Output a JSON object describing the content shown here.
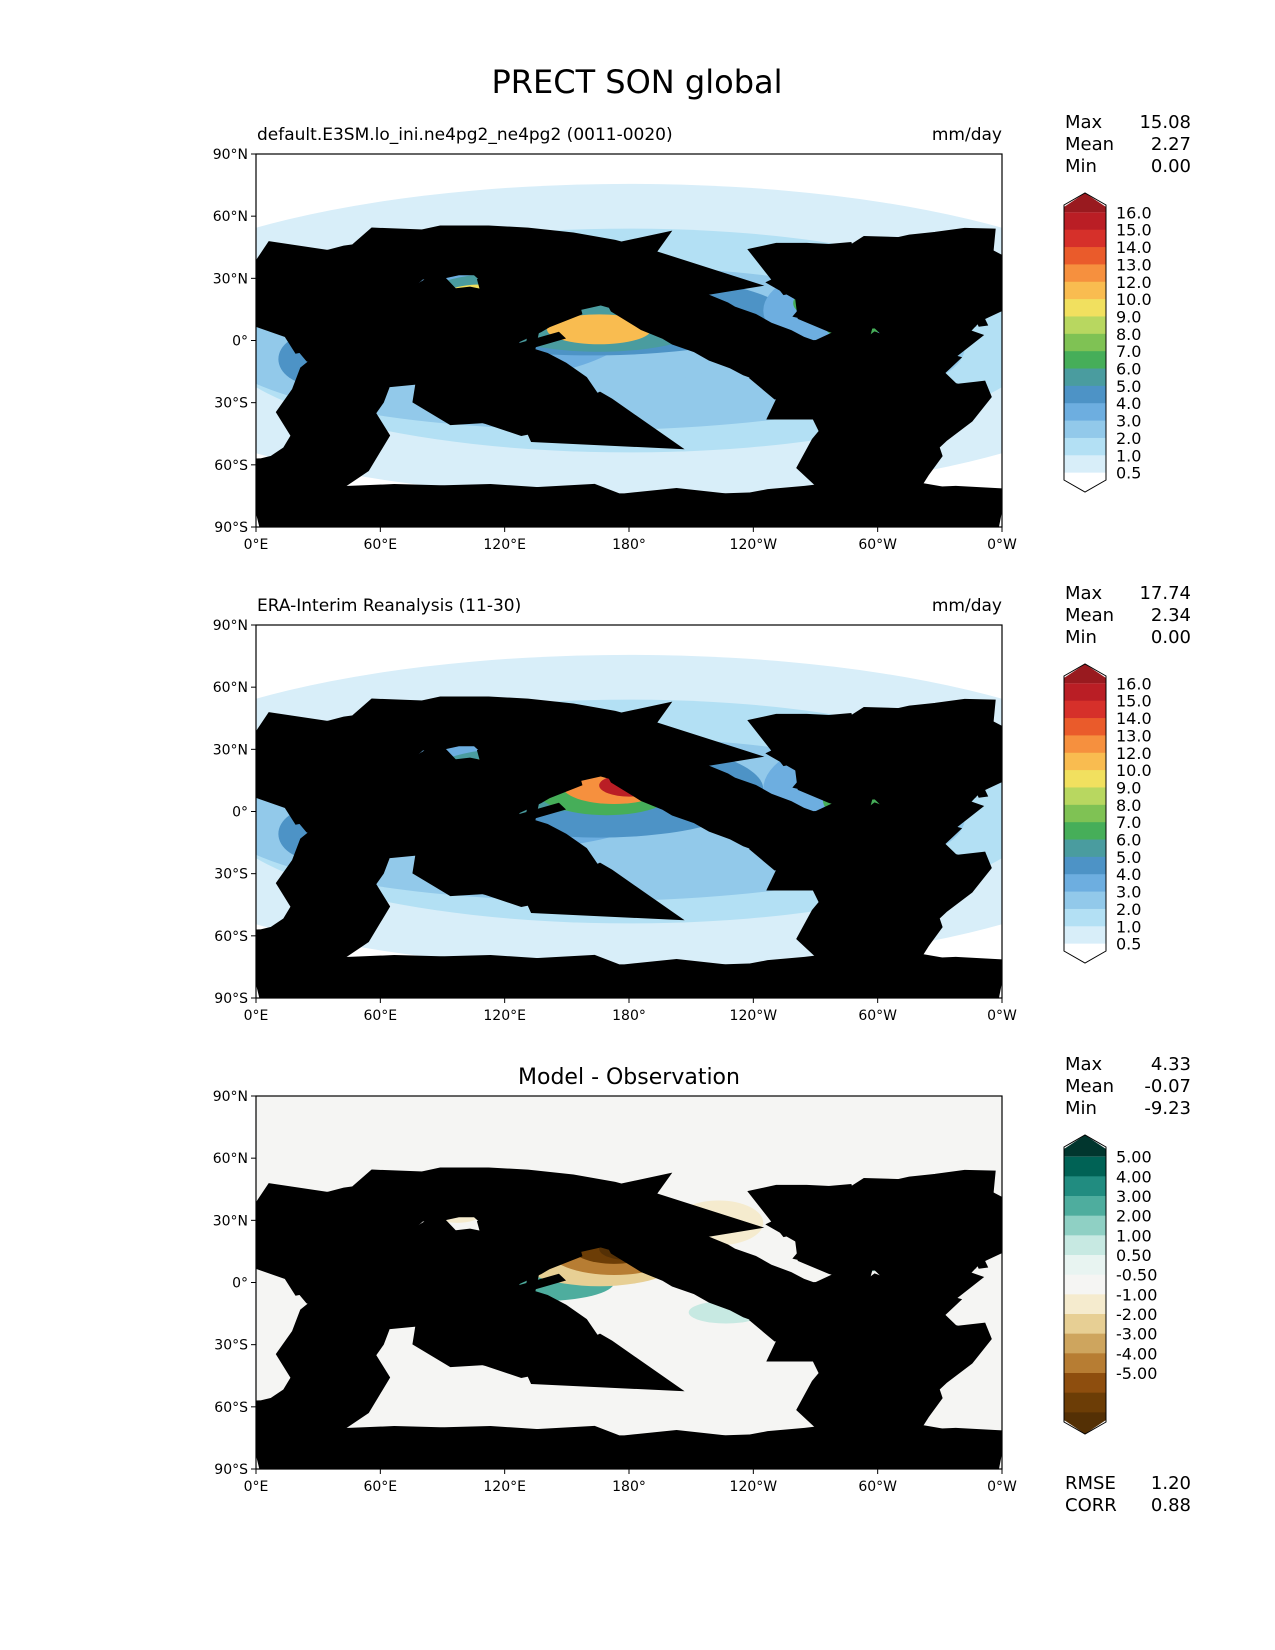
{
  "figure": {
    "title": "PRECT SON global"
  },
  "axes": {
    "lat_ticks": [
      "90°N",
      "60°N",
      "30°N",
      "0°",
      "30°S",
      "60°S",
      "90°S"
    ],
    "lon_ticks": [
      "0°E",
      "60°E",
      "120°E",
      "180°",
      "120°W",
      "60°W",
      "0°W"
    ]
  },
  "colors": {
    "precip": [
      "#ffffff",
      "#d8eef9",
      "#b3e0f4",
      "#92c9ea",
      "#6daee0",
      "#4d93c6",
      "#4a9c9f",
      "#46ae59",
      "#7fc254",
      "#b8d760",
      "#f1e05f",
      "#f9bc50",
      "#f6903e",
      "#ea5b2b",
      "#d6302a",
      "#ba1e25",
      "#991a1f"
    ],
    "diff": [
      "#01362e",
      "#006255",
      "#218c80",
      "#4ead9e",
      "#8fd0c4",
      "#c7e9e2",
      "#e8f4f1",
      "#f5f5f3",
      "#f5ebce",
      "#e7cf94",
      "#cea55e",
      "#b77d33",
      "#8e4e0e",
      "#6c3d06",
      "#543005"
    ]
  },
  "panels": [
    {
      "id": "test",
      "left_title": "default.E3SM.lo_ini.ne4pg2_ne4pg2 (0011-0020)",
      "center_title": "",
      "units": "mm/day",
      "stats": [
        {
          "label": "Max",
          "value": "15.08"
        },
        {
          "label": "Mean",
          "value": "2.27"
        },
        {
          "label": "Min",
          "value": "0.00"
        }
      ],
      "colorbar_labels": [
        "16.0",
        "15.0",
        "14.0",
        "13.0",
        "12.0",
        "10.0",
        "9.0",
        "8.0",
        "7.0",
        "6.0",
        "5.0",
        "4.0",
        "3.0",
        "2.0",
        "1.0",
        "0.5"
      ],
      "bottom_stats": []
    },
    {
      "id": "reference",
      "left_title": "ERA-Interim Reanalysis (11-30)",
      "center_title": "",
      "units": "mm/day",
      "stats": [
        {
          "label": "Max",
          "value": "17.74"
        },
        {
          "label": "Mean",
          "value": "2.34"
        },
        {
          "label": "Min",
          "value": "0.00"
        }
      ],
      "colorbar_labels": [
        "16.0",
        "15.0",
        "14.0",
        "13.0",
        "12.0",
        "10.0",
        "9.0",
        "8.0",
        "7.0",
        "6.0",
        "5.0",
        "4.0",
        "3.0",
        "2.0",
        "1.0",
        "0.5"
      ],
      "bottom_stats": []
    },
    {
      "id": "difference",
      "left_title": "",
      "center_title": "Model - Observation",
      "units": "",
      "stats": [
        {
          "label": "Max",
          "value": "4.33"
        },
        {
          "label": "Mean",
          "value": "-0.07"
        },
        {
          "label": "Min",
          "value": "-9.23"
        }
      ],
      "colorbar_labels": [
        "5.00",
        "4.00",
        "3.00",
        "2.00",
        "1.00",
        "0.50",
        "-0.50",
        "-1.00",
        "-2.00",
        "-3.00",
        "-4.00",
        "-5.00"
      ],
      "bottom_stats": [
        {
          "label": "RMSE",
          "value": "1.20"
        },
        {
          "label": "CORR",
          "value": "0.88"
        }
      ]
    }
  ]
}
